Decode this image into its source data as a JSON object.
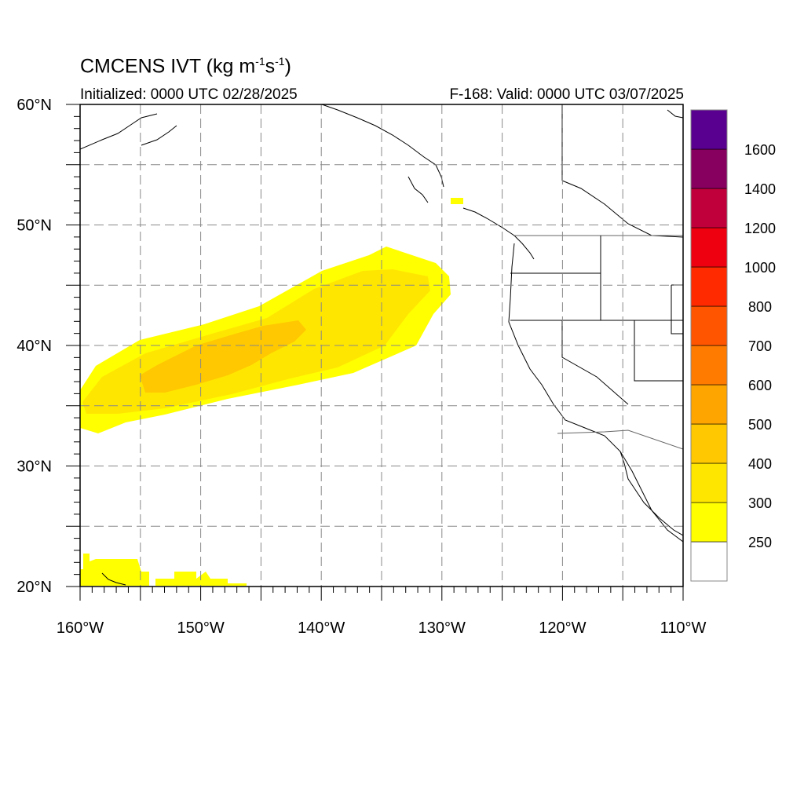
{
  "header": {
    "title_prefix": "CMCENS IVT (kg m",
    "title_exp1": "-1",
    "title_mid": "s",
    "title_exp2": "-1",
    "title_suffix": ")",
    "initialized": "Initialized: 0000 UTC 02/28/2025",
    "valid": "F-168: Valid: 0000 UTC 03/07/2025"
  },
  "map": {
    "lon_range": [
      -160,
      -110
    ],
    "lat_range": [
      20,
      60
    ],
    "grid_lon_step": 5,
    "grid_lat_step": 5,
    "grid_style": "dashed"
  },
  "axes": {
    "x_ticks": [
      {
        "lon": -160,
        "label": "160°W"
      },
      {
        "lon": -150,
        "label": "150°W"
      },
      {
        "lon": -140,
        "label": "140°W"
      },
      {
        "lon": -130,
        "label": "130°W"
      },
      {
        "lon": -120,
        "label": "120°W"
      },
      {
        "lon": -110,
        "label": "110°W"
      }
    ],
    "y_ticks": [
      {
        "lat": 60,
        "label": "60°N"
      },
      {
        "lat": 50,
        "label": "50°N"
      },
      {
        "lat": 40,
        "label": "40°N"
      },
      {
        "lat": 30,
        "label": "30°N"
      },
      {
        "lat": 20,
        "label": "20°N"
      }
    ]
  },
  "colorbar": {
    "levels": [
      "250",
      "300",
      "400",
      "500",
      "600",
      "700",
      "800",
      "1000",
      "1200",
      "1400",
      "1600"
    ],
    "colors": [
      "#ffffff",
      "#ffff00",
      "#ffe600",
      "#ffc800",
      "#ffa500",
      "#ff7b00",
      "#ff5500",
      "#ff2a00",
      "#ee0010",
      "#c0003a",
      "#870060",
      "#5a0090"
    ]
  },
  "chart_data": {
    "type": "heatmap",
    "variable": "IVT",
    "units": "kg m-1 s-1",
    "plume_main": {
      "approx_lon_range": [
        -160,
        -129
      ],
      "approx_lat_range": [
        33,
        48
      ],
      "peak_bin": "400-500",
      "core_approx": {
        "lon": -148,
        "lat": 38.5
      }
    },
    "plume_south": {
      "approx_lon_range": [
        -160,
        -146
      ],
      "approx_lat_range": [
        20,
        22.5
      ],
      "bin": "250-300"
    },
    "patch_north": {
      "approx_lon": -129,
      "approx_lat": 52,
      "bin": "250-300"
    }
  }
}
